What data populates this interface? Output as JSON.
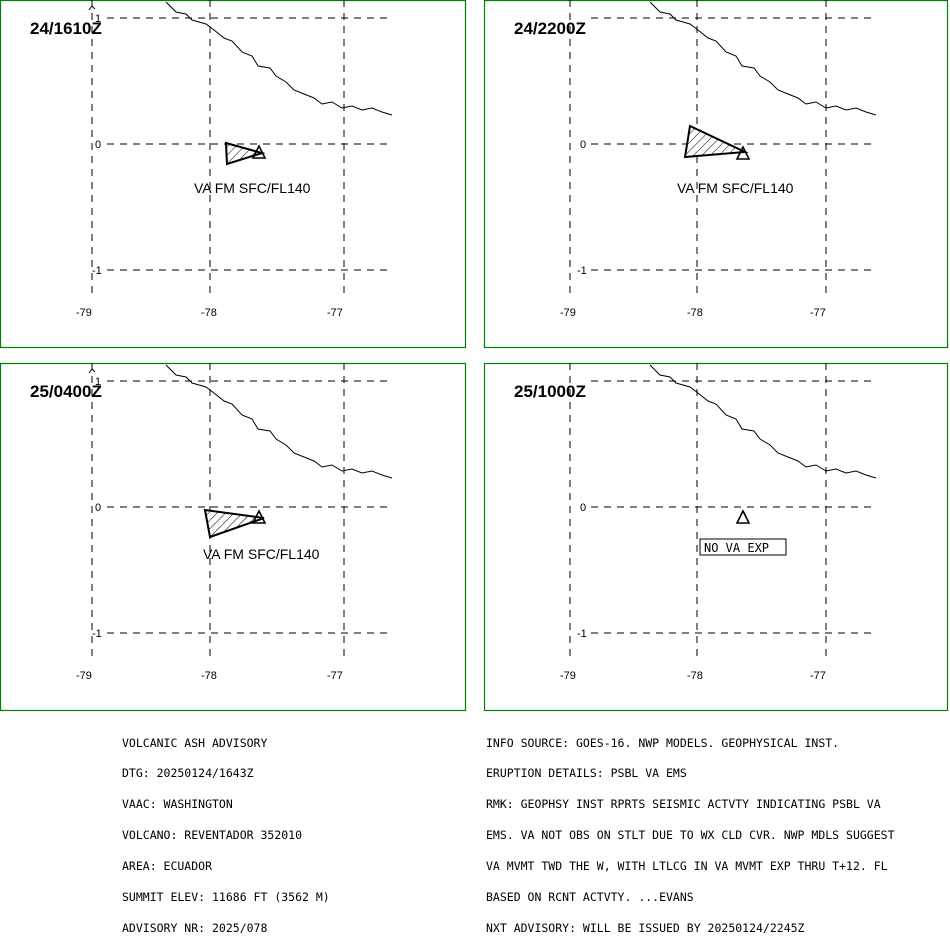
{
  "panels": [
    {
      "time_label": "24/1610Z",
      "va_label": "VA FM SFC/FL140",
      "lat_ticks": [
        "1",
        "0",
        "-1"
      ],
      "lon_ticks": [
        "-79",
        "-78",
        "-77"
      ]
    },
    {
      "time_label": "24/2200Z",
      "va_label": "VA FM SFC/FL140",
      "lat_ticks": [
        "1",
        "0",
        "-1"
      ],
      "lon_ticks": [
        "-79",
        "-78",
        "-77"
      ]
    },
    {
      "time_label": "25/0400Z",
      "va_label": "VA FM SFC/FL140",
      "lat_ticks": [
        "1",
        "0",
        "-1"
      ],
      "lon_ticks": [
        "-79",
        "-78",
        "-77"
      ]
    },
    {
      "time_label": "25/1000Z",
      "va_label": "NO VA EXP",
      "lat_ticks": [
        "1",
        "0",
        "-1"
      ],
      "lon_ticks": [
        "-79",
        "-78",
        "-77"
      ]
    }
  ],
  "advisory_left": [
    "VOLCANIC ASH ADVISORY",
    "DTG: 20250124/1643Z",
    "VAAC: WASHINGTON",
    "VOLCANO: REVENTADOR 352010",
    "AREA: ECUADOR",
    "SUMMIT ELEV: 11686 FT (3562 M)",
    "ADVISORY NR: 2025/078"
  ],
  "advisory_right": [
    "INFO SOURCE: GOES-16. NWP MODELS. GEOPHYSICAL INST.",
    "ERUPTION DETAILS: PSBL VA EMS",
    "RMK: GEOPHSY INST RPRTS SEISMIC ACTVTY INDICATING PSBL VA",
    "EMS. VA NOT OBS ON STLT DUE TO WX CLD CVR. NWP MDLS SUGGEST",
    "VA MVMT TWD THE W, WITH LTLCG IN VA MVMT EXP THRU T+12. FL",
    "BASED ON RCNT ACTVTY. ...EVANS",
    "NXT ADVISORY: WILL BE ISSUED BY 20250124/2245Z"
  ],
  "colors": {
    "frame": "#008000",
    "lines": "#000000",
    "background": "#ffffff"
  },
  "icons": {
    "volcano": "volcano-triangle-icon"
  }
}
